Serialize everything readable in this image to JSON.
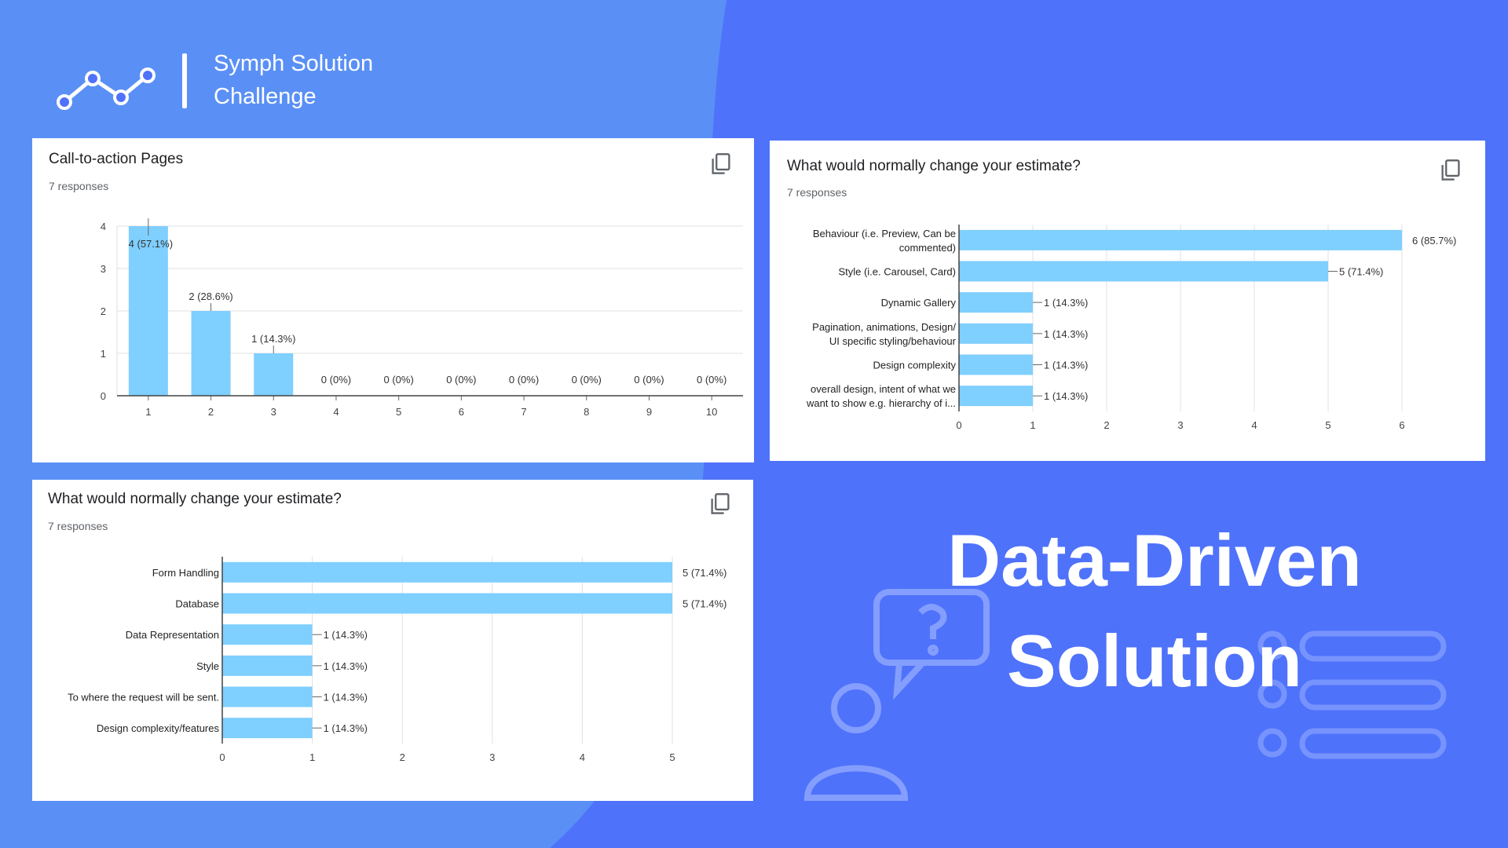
{
  "brand": {
    "title_line1": "Symph Solution",
    "title_line2": "Challenge"
  },
  "hero": {
    "line1": "Data-Driven",
    "line2": "Solution"
  },
  "colors": {
    "background": "#4f72fb",
    "bar": "#7fcfff",
    "axis": "#444444",
    "grid": "#e0e0e0"
  },
  "icons": {
    "logo": "line-chart-icon",
    "copy": "copy-icon",
    "question": "question-bubble-icon",
    "person": "person-icon",
    "list": "list-icon"
  },
  "cards": [
    {
      "title": "Call-to-action Pages",
      "responses": "7 responses"
    },
    {
      "title": "What would normally change your estimate?",
      "responses": "7 responses"
    },
    {
      "title": "What would normally change your estimate?",
      "responses": "7 responses"
    }
  ],
  "chart_data": [
    {
      "type": "bar",
      "title": "Call-to-action Pages",
      "categories": [
        "1",
        "2",
        "3",
        "4",
        "5",
        "6",
        "7",
        "8",
        "9",
        "10"
      ],
      "values": [
        4,
        2,
        1,
        0,
        0,
        0,
        0,
        0,
        0,
        0
      ],
      "labels": [
        "4 (57.1%)",
        "2 (28.6%)",
        "1 (14.3%)",
        "0 (0%)",
        "0 (0%)",
        "0 (0%)",
        "0 (0%)",
        "0 (0%)",
        "0 (0%)",
        "0 (0%)"
      ],
      "ylim": [
        0,
        4
      ],
      "yticks": [
        0,
        1,
        2,
        3,
        4
      ],
      "xlabel": "",
      "ylabel": ""
    },
    {
      "type": "bar",
      "orientation": "horizontal",
      "title": "What would normally change your estimate?",
      "categories": [
        [
          "Behaviour (i.e. Preview, Can be",
          "commented)"
        ],
        [
          "Style (i.e. Carousel, Card)"
        ],
        [
          "Dynamic Gallery"
        ],
        [
          "Pagination, animations, Design/",
          "UI specific styling/behaviour"
        ],
        [
          "Design complexity"
        ],
        [
          "overall design, intent of what we",
          "want to show e.g. hierarchy of i..."
        ]
      ],
      "values": [
        6,
        5,
        1,
        1,
        1,
        1
      ],
      "labels": [
        "6 (85.7%)",
        "5 (71.4%)",
        "1 (14.3%)",
        "1 (14.3%)",
        "1 (14.3%)",
        "1 (14.3%)"
      ],
      "xlim": [
        0,
        6
      ],
      "xticks": [
        0,
        1,
        2,
        3,
        4,
        5,
        6
      ]
    },
    {
      "type": "bar",
      "orientation": "horizontal",
      "title": "What would normally change your estimate?",
      "categories": [
        [
          "Form Handling"
        ],
        [
          "Database"
        ],
        [
          "Data Representation"
        ],
        [
          "Style"
        ],
        [
          "To where the request will be sent."
        ],
        [
          "Design complexity/features"
        ]
      ],
      "values": [
        5,
        5,
        1,
        1,
        1,
        1
      ],
      "labels": [
        "5 (71.4%)",
        "5 (71.4%)",
        "1 (14.3%)",
        "1 (14.3%)",
        "1 (14.3%)",
        "1 (14.3%)"
      ],
      "xlim": [
        0,
        5
      ],
      "xticks": [
        0,
        1,
        2,
        3,
        4,
        5
      ]
    }
  ]
}
